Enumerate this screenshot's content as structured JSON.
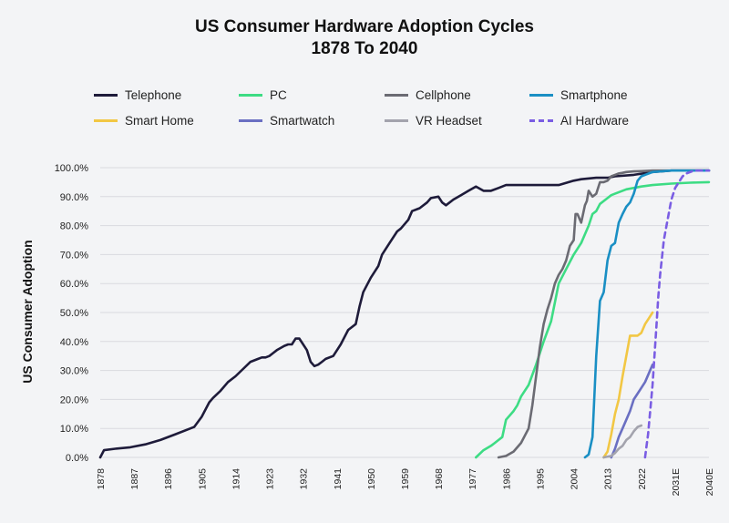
{
  "chart_data": {
    "type": "line",
    "title": "US Consumer Hardware Adoption Cycles",
    "subtitle": "1878 To 2040",
    "xlabel": "",
    "ylabel": "US Consumer Adoption",
    "xlim": [
      1878,
      2040
    ],
    "ylim": [
      0,
      100
    ],
    "y_ticks": [
      "0.0%",
      "10.0%",
      "20.0%",
      "30.0%",
      "40.0%",
      "50.0%",
      "60.0%",
      "70.0%",
      "80.0%",
      "90.0%",
      "100.0%"
    ],
    "x_ticks": [
      {
        "x": 1878,
        "label": "1878"
      },
      {
        "x": 1887,
        "label": "1887"
      },
      {
        "x": 1896,
        "label": "1896"
      },
      {
        "x": 1905,
        "label": "1905"
      },
      {
        "x": 1914,
        "label": "1914"
      },
      {
        "x": 1923,
        "label": "1923"
      },
      {
        "x": 1932,
        "label": "1932"
      },
      {
        "x": 1941,
        "label": "1941"
      },
      {
        "x": 1950,
        "label": "1950"
      },
      {
        "x": 1959,
        "label": "1959"
      },
      {
        "x": 1968,
        "label": "1968"
      },
      {
        "x": 1977,
        "label": "1977"
      },
      {
        "x": 1986,
        "label": "1986"
      },
      {
        "x": 1995,
        "label": "1995"
      },
      {
        "x": 2004,
        "label": "2004"
      },
      {
        "x": 2013,
        "label": "2013"
      },
      {
        "x": 2022,
        "label": "2022"
      },
      {
        "x": 2031,
        "label": "2031E"
      },
      {
        "x": 2040,
        "label": "2040E"
      }
    ],
    "grid": "horizontal",
    "legend_position": "top",
    "series": [
      {
        "name": "Telephone",
        "color": "#1e1b3a",
        "dashed": false,
        "x": [
          1878,
          1879,
          1882,
          1886,
          1890,
          1894,
          1898,
          1902,
          1903,
          1905,
          1907,
          1908,
          1910,
          1912,
          1914,
          1916,
          1918,
          1920,
          1921,
          1922,
          1923,
          1924,
          1925,
          1927,
          1928,
          1929,
          1930,
          1931,
          1932,
          1933,
          1934,
          1935,
          1936,
          1937,
          1938,
          1940,
          1942,
          1944,
          1946,
          1947,
          1948,
          1950,
          1952,
          1953,
          1955,
          1957,
          1958,
          1960,
          1961,
          1963,
          1965,
          1966,
          1968,
          1969,
          1970,
          1972,
          1974,
          1976,
          1978,
          1980,
          1981,
          1982,
          1984,
          1986,
          1990,
          1995,
          2000,
          2004,
          2006,
          2010,
          2013,
          2015,
          2020,
          2025,
          2030,
          2035,
          2040
        ],
        "y": [
          0,
          2.5,
          3,
          3.5,
          4.5,
          6,
          8,
          10,
          10.5,
          14,
          19,
          20.5,
          23,
          26,
          28,
          30.5,
          33,
          34,
          34.5,
          34.5,
          35,
          36,
          37,
          38.5,
          39,
          39,
          41,
          41,
          39,
          37,
          33,
          31.5,
          32,
          33,
          34,
          35,
          39,
          44,
          46,
          52,
          57,
          62,
          66,
          70,
          74,
          78,
          79,
          82,
          85,
          86,
          88,
          89.5,
          90,
          88,
          87,
          89,
          90.5,
          92,
          93.5,
          92,
          92,
          92,
          93,
          94,
          94,
          94,
          94,
          95.5,
          96,
          96.5,
          96.5,
          97,
          97.5,
          98.5,
          99,
          99,
          99
        ]
      },
      {
        "name": "PC",
        "color": "#3ddc84",
        "dashed": false,
        "x": [
          1978,
          1980,
          1982,
          1983,
          1984,
          1985,
          1986,
          1988,
          1989,
          1990,
          1992,
          1994,
          1996,
          1998,
          2000,
          2002,
          2004,
          2006,
          2008,
          2009,
          2010,
          2011,
          2013,
          2014,
          2015,
          2018,
          2022,
          2025,
          2030,
          2035,
          2040
        ],
        "y": [
          0,
          2.5,
          4,
          5,
          6,
          7,
          13,
          16,
          18,
          21,
          25,
          32,
          40,
          47,
          60,
          65,
          70,
          74,
          80,
          84,
          85,
          87.5,
          89.5,
          90.5,
          91,
          92.5,
          93.5,
          94,
          94.5,
          94.8,
          95
        ]
      },
      {
        "name": "Cellphone",
        "color": "#6b6b73",
        "dashed": false,
        "x": [
          1984,
          1986,
          1988,
          1990,
          1992,
          1993,
          1994,
          1995,
          1996,
          1997,
          1998,
          1999,
          2000,
          2001,
          2002,
          2003,
          2004,
          2004.5,
          2005,
          2006,
          2007,
          2007.5,
          2008,
          2009,
          2010,
          2011,
          2012,
          2013,
          2014,
          2015,
          2016,
          2017,
          2018,
          2020,
          2022,
          2025,
          2030,
          2035,
          2040
        ],
        "y": [
          0,
          0.5,
          2,
          5,
          10,
          18,
          28,
          38,
          46,
          51,
          55,
          60,
          63,
          65,
          68,
          73,
          75,
          84,
          84,
          81,
          87,
          88.5,
          92,
          90,
          91,
          95,
          95,
          95.5,
          97,
          97.5,
          98,
          98.2,
          98.5,
          98.7,
          98.8,
          99,
          99,
          99,
          99
        ]
      },
      {
        "name": "Smartphone",
        "color": "#1a8fc4",
        "dashed": false,
        "x": [
          2007,
          2008,
          2009,
          2010,
          2011,
          2012,
          2013,
          2014,
          2015,
          2016,
          2017,
          2018,
          2019,
          2020,
          2021,
          2022,
          2023,
          2024,
          2025,
          2030,
          2035,
          2040
        ],
        "y": [
          0,
          1,
          7,
          35,
          54,
          57,
          68,
          73,
          74,
          81,
          84,
          86.5,
          88,
          91,
          95.5,
          97,
          97.5,
          98,
          98.5,
          99,
          99,
          99
        ]
      },
      {
        "name": "Smart Home",
        "color": "#f2c744",
        "dashed": false,
        "x": [
          2012,
          2013,
          2014,
          2015,
          2016,
          2017,
          2018,
          2019,
          2020,
          2021,
          2022,
          2023,
          2024,
          2025
        ],
        "y": [
          0,
          2,
          8,
          15,
          20,
          28,
          35,
          42,
          42,
          42,
          43,
          46,
          48,
          50
        ]
      },
      {
        "name": "Smartwatch",
        "color": "#6a6fc2",
        "dashed": false,
        "x": [
          2014,
          2015,
          2016,
          2017,
          2018,
          2019,
          2020,
          2021,
          2022,
          2023,
          2024,
          2025
        ],
        "y": [
          0,
          3,
          7,
          10,
          13,
          16,
          20,
          22,
          24,
          26,
          29,
          32
        ]
      },
      {
        "name": "VR Headset",
        "color": "#a3a3ad",
        "dashed": false,
        "x": [
          2012,
          2014,
          2015,
          2016,
          2017,
          2018,
          2019,
          2020,
          2021,
          2022
        ],
        "y": [
          0,
          0.5,
          1.5,
          3,
          4,
          6,
          7,
          9,
          10.5,
          11
        ]
      },
      {
        "name": "AI Hardware",
        "color": "#7a5de3",
        "dashed": true,
        "x": [
          2023,
          2023.2,
          2023.8,
          2024.5,
          2025,
          2025.5,
          2026,
          2026.5,
          2027,
          2028,
          2029,
          2030,
          2031,
          2032,
          2033,
          2034,
          2035,
          2036,
          2038,
          2040
        ],
        "y": [
          0,
          2,
          8,
          18,
          25,
          35,
          45,
          55,
          63,
          75,
          82,
          89,
          93,
          95,
          97,
          98,
          98.5,
          99,
          99,
          99
        ]
      }
    ]
  }
}
